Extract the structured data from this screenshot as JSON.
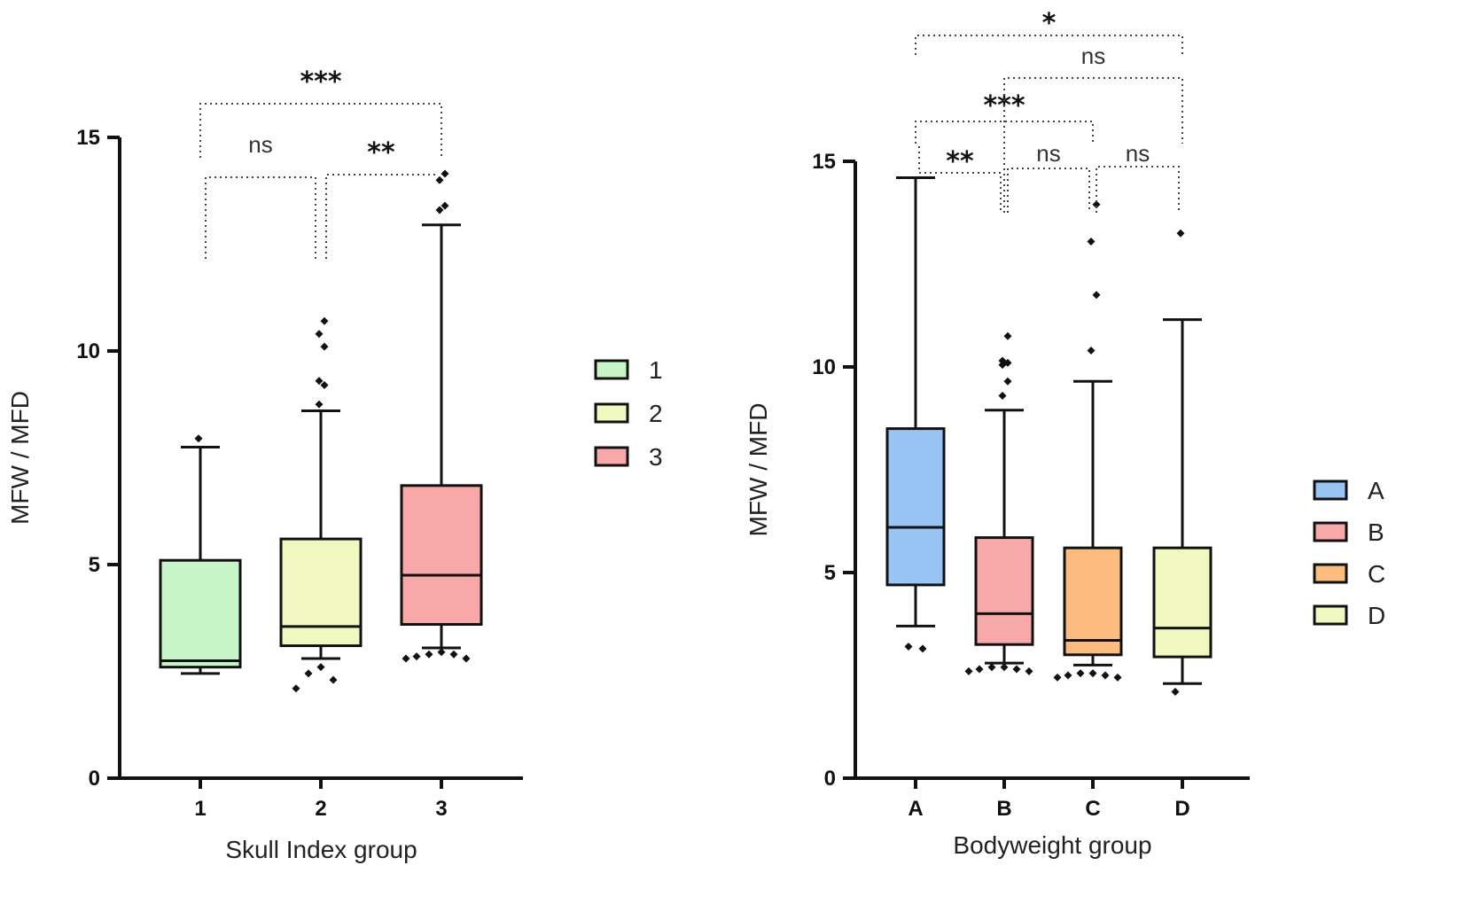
{
  "chart_data": [
    {
      "type": "box",
      "title": "",
      "xlabel": "Skull Index group",
      "ylabel": "MFW / MFD",
      "ylim": [
        0,
        15
      ],
      "yticks": [
        0,
        5,
        10,
        15
      ],
      "grid": false,
      "legend_position": "right",
      "categories": [
        "1",
        "2",
        "3"
      ],
      "boxes": [
        {
          "name": "1",
          "color": "#c8f5c8",
          "whisker_low": 2.45,
          "q1": 2.6,
          "median": 2.75,
          "q3": 5.1,
          "whisker_high": 7.75,
          "outliers": [
            7.95
          ]
        },
        {
          "name": "2",
          "color": "#f0f8c0",
          "whisker_low": 2.8,
          "q1": 3.1,
          "median": 3.55,
          "q3": 5.6,
          "whisker_high": 8.6,
          "outliers": [
            2.6,
            2.45,
            2.3,
            2.1,
            8.75,
            9.2,
            9.3,
            10.1,
            10.4,
            10.7
          ]
        },
        {
          "name": "3",
          "color": "#f8a8a8",
          "whisker_low": 3.05,
          "q1": 3.6,
          "median": 4.75,
          "q3": 6.85,
          "whisker_high": 12.95,
          "outliers": [
            2.8,
            2.8,
            2.85,
            2.9,
            2.9,
            2.95,
            13.3,
            13.4,
            14.0,
            14.15
          ]
        }
      ],
      "comparisons": [
        {
          "from": "1",
          "to": "2",
          "label": "ns"
        },
        {
          "from": "2",
          "to": "3",
          "label": "**"
        },
        {
          "from": "1",
          "to": "3",
          "label": "***"
        }
      ]
    },
    {
      "type": "box",
      "title": "",
      "xlabel": "Bodyweight group",
      "ylabel": "MFW / MFD",
      "ylim": [
        0,
        15
      ],
      "yticks": [
        0,
        5,
        10,
        15
      ],
      "grid": false,
      "legend_position": "right",
      "categories": [
        "A",
        "B",
        "C",
        "D"
      ],
      "boxes": [
        {
          "name": "A",
          "color": "#98c4f4",
          "whisker_low": 3.7,
          "q1": 4.7,
          "median": 6.1,
          "q3": 8.5,
          "whisker_high": 14.6,
          "outliers": [
            3.15,
            3.2
          ]
        },
        {
          "name": "B",
          "color": "#f8a8a8",
          "whisker_low": 2.8,
          "q1": 3.25,
          "median": 4.0,
          "q3": 5.85,
          "whisker_high": 8.95,
          "outliers": [
            2.6,
            2.6,
            2.65,
            2.65,
            2.7,
            2.7,
            9.3,
            9.65,
            10.05,
            10.1,
            10.15,
            10.75
          ]
        },
        {
          "name": "C",
          "color": "#fcbc80",
          "whisker_low": 2.75,
          "q1": 3.0,
          "median": 3.35,
          "q3": 5.6,
          "whisker_high": 9.65,
          "outliers": [
            2.45,
            2.45,
            2.5,
            2.5,
            2.55,
            2.55,
            10.4,
            11.75,
            13.05,
            13.95
          ]
        },
        {
          "name": "D",
          "color": "#f0f8c0",
          "whisker_low": 2.3,
          "q1": 2.95,
          "median": 3.65,
          "q3": 5.6,
          "whisker_high": 11.15,
          "outliers": [
            2.1,
            13.25
          ]
        }
      ],
      "comparisons": [
        {
          "from": "A",
          "to": "B",
          "label": "**"
        },
        {
          "from": "B",
          "to": "C",
          "label": "ns"
        },
        {
          "from": "C",
          "to": "D",
          "label": "ns"
        },
        {
          "from": "A",
          "to": "C",
          "label": "***"
        },
        {
          "from": "B",
          "to": "D",
          "label": "ns"
        },
        {
          "from": "A",
          "to": "D",
          "label": "*"
        }
      ]
    }
  ]
}
